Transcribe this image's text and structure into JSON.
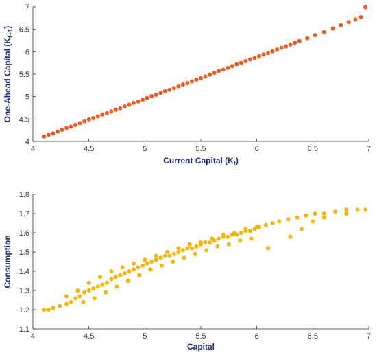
{
  "chart_data": [
    {
      "type": "scatter",
      "xlabel": "Current Capital (K",
      "xlabel_sub": "t",
      "xlabel_end": ")",
      "ylabel": "One-Ahead Capital (K",
      "ylabel_sub": "t+1",
      "ylabel_end": ")",
      "xlim": [
        4,
        7
      ],
      "ylim": [
        4,
        7
      ],
      "x_ticks": [
        "4",
        "4.5",
        "5",
        "5.5",
        "6",
        "6.5",
        "7"
      ],
      "y_ticks": [
        "4",
        "4.5",
        "5",
        "5.5",
        "6",
        "6.5",
        "7"
      ],
      "color": "#f05a1e",
      "series": [
        {
          "x": [
            4.1,
            4.14,
            4.18,
            4.22,
            4.26,
            4.3,
            4.34,
            4.38,
            4.42,
            4.46,
            4.5,
            4.54,
            4.58,
            4.62,
            4.66,
            4.7,
            4.74,
            4.78,
            4.82,
            4.86,
            4.9,
            4.94,
            4.98,
            5.02,
            5.06,
            5.1,
            5.14,
            5.18,
            5.22,
            5.26,
            5.3,
            5.34,
            5.38,
            5.42,
            5.46,
            5.5,
            5.54,
            5.58,
            5.62,
            5.66,
            5.7,
            5.74,
            5.78,
            5.82,
            5.86,
            5.9,
            5.94,
            5.98,
            6.02,
            6.06,
            6.1,
            6.14,
            6.18,
            6.22,
            6.26,
            6.3,
            6.34,
            6.38,
            6.45,
            6.52,
            6.6,
            6.68,
            6.75,
            6.82,
            6.88,
            6.93,
            6.97
          ],
          "y": [
            4.11,
            4.15,
            4.18,
            4.22,
            4.26,
            4.3,
            4.33,
            4.37,
            4.41,
            4.45,
            4.49,
            4.52,
            4.56,
            4.6,
            4.63,
            4.67,
            4.71,
            4.74,
            4.78,
            4.82,
            4.86,
            4.89,
            4.93,
            4.97,
            5.01,
            5.04,
            5.08,
            5.12,
            5.15,
            5.19,
            5.23,
            5.27,
            5.3,
            5.34,
            5.38,
            5.41,
            5.45,
            5.49,
            5.53,
            5.57,
            5.6,
            5.64,
            5.68,
            5.72,
            5.75,
            5.79,
            5.83,
            5.86,
            5.9,
            5.94,
            5.97,
            6.01,
            6.05,
            6.09,
            6.12,
            6.16,
            6.2,
            6.24,
            6.3,
            6.37,
            6.44,
            6.52,
            6.59,
            6.66,
            6.72,
            6.77,
            6.99
          ]
        }
      ]
    },
    {
      "type": "scatter",
      "xlabel": "Capital",
      "ylabel": "Consumption",
      "xlim": [
        4,
        7
      ],
      "ylim": [
        1.1,
        1.8
      ],
      "x_ticks": [
        "4",
        "4.5",
        "5",
        "5.5",
        "6",
        "6.5",
        "7"
      ],
      "y_ticks": [
        "1.1",
        "1.2",
        "1.3",
        "1.4",
        "1.5",
        "1.6",
        "1.7",
        "1.8"
      ],
      "color": "#f7b500",
      "series": [
        {
          "x": [
            4.1,
            4.14,
            4.18,
            4.24,
            4.3,
            4.34,
            4.38,
            4.42,
            4.46,
            4.5,
            4.54,
            4.58,
            4.62,
            4.66,
            4.7,
            4.74,
            4.78,
            4.82,
            4.86,
            4.9,
            4.94,
            4.98,
            5.02,
            5.06,
            5.1,
            5.14,
            5.18,
            5.22,
            5.26,
            5.3,
            5.34,
            5.38,
            5.42,
            5.46,
            5.5,
            5.54,
            5.58,
            5.62,
            5.66,
            5.7,
            5.74,
            5.78,
            5.82,
            5.86,
            5.9,
            5.94,
            5.98,
            6.02,
            6.08,
            6.14,
            6.2,
            6.28,
            6.36,
            6.44,
            6.52,
            6.6,
            6.7,
            6.8,
            6.9,
            6.97,
            4.3,
            4.4,
            4.5,
            4.6,
            4.7,
            4.8,
            4.9,
            5.0,
            5.1,
            5.2,
            5.3,
            5.4,
            5.5,
            5.6,
            5.7,
            5.8,
            5.9,
            6.0,
            4.45,
            4.55,
            4.65,
            4.75,
            4.85,
            4.95,
            5.05,
            5.15,
            5.25,
            5.35,
            5.45,
            5.55,
            5.65,
            5.75,
            5.85,
            5.95,
            6.1,
            6.3,
            6.5,
            6.4,
            6.6,
            6.8
          ],
          "y": [
            1.2,
            1.2,
            1.21,
            1.22,
            1.23,
            1.24,
            1.26,
            1.27,
            1.29,
            1.3,
            1.31,
            1.32,
            1.33,
            1.34,
            1.36,
            1.37,
            1.38,
            1.39,
            1.4,
            1.41,
            1.42,
            1.43,
            1.44,
            1.45,
            1.46,
            1.47,
            1.48,
            1.48,
            1.49,
            1.5,
            1.51,
            1.52,
            1.52,
            1.53,
            1.54,
            1.55,
            1.55,
            1.56,
            1.57,
            1.58,
            1.58,
            1.59,
            1.59,
            1.6,
            1.61,
            1.61,
            1.62,
            1.63,
            1.64,
            1.65,
            1.66,
            1.67,
            1.68,
            1.69,
            1.7,
            1.7,
            1.71,
            1.72,
            1.72,
            1.72,
            1.27,
            1.3,
            1.34,
            1.37,
            1.4,
            1.42,
            1.44,
            1.46,
            1.48,
            1.5,
            1.52,
            1.54,
            1.55,
            1.57,
            1.59,
            1.6,
            1.62,
            1.63,
            1.24,
            1.26,
            1.29,
            1.32,
            1.35,
            1.38,
            1.41,
            1.43,
            1.45,
            1.47,
            1.49,
            1.51,
            1.53,
            1.54,
            1.56,
            1.57,
            1.52,
            1.58,
            1.66,
            1.62,
            1.68,
            1.7
          ]
        }
      ]
    }
  ]
}
